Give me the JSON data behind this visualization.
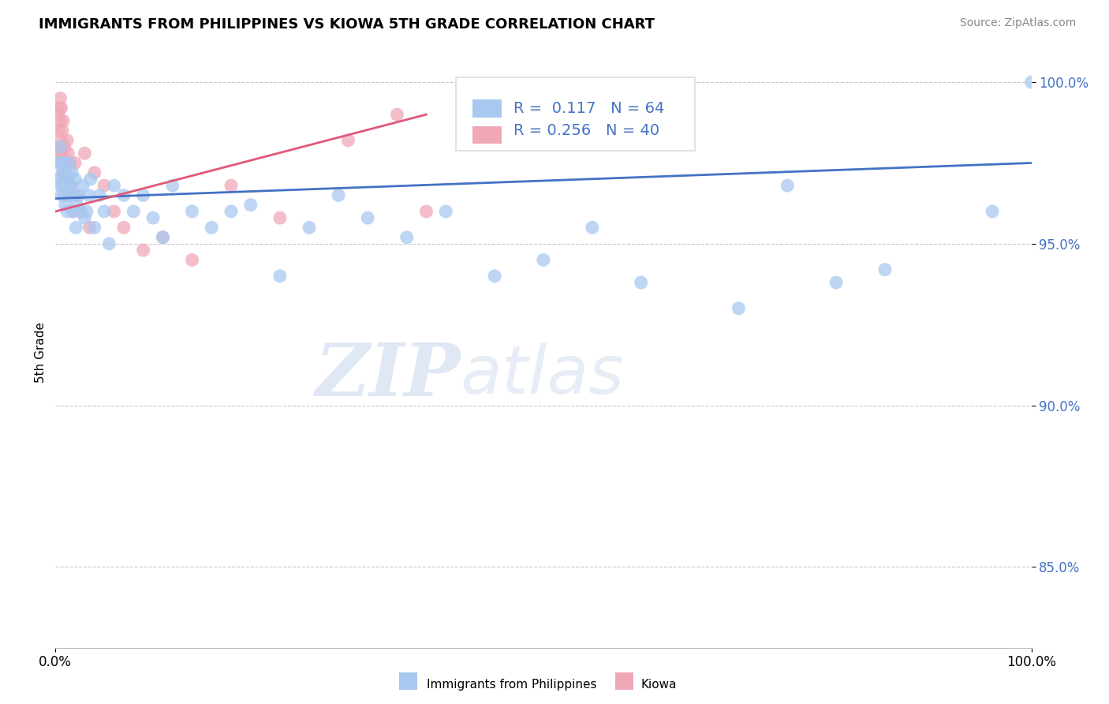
{
  "title": "IMMIGRANTS FROM PHILIPPINES VS KIOWA 5TH GRADE CORRELATION CHART",
  "source_text": "Source: ZipAtlas.com",
  "ylabel": "5th Grade",
  "xlim": [
    0.0,
    1.0
  ],
  "ylim": [
    0.825,
    1.008
  ],
  "y_tick_values": [
    0.85,
    0.9,
    0.95,
    1.0
  ],
  "legend_r1": "R =  0.117",
  "legend_n1": "N = 64",
  "legend_r2": "R = 0.256",
  "legend_n2": "N = 40",
  "blue_color": "#A8C8F0",
  "pink_color": "#F0A8B8",
  "trend_blue": "#4472C4",
  "trend_pink": "#E05878",
  "watermark_zip": "ZIP",
  "watermark_atlas": "atlas",
  "blue_trend_x0": 0.0,
  "blue_trend_y0": 0.964,
  "blue_trend_x1": 1.0,
  "blue_trend_y1": 0.975,
  "pink_trend_x0": 0.0,
  "pink_trend_y0": 0.96,
  "pink_trend_x1": 0.38,
  "pink_trend_y1": 0.99,
  "blue_scatter_x": [
    0.003,
    0.004,
    0.005,
    0.005,
    0.006,
    0.006,
    0.007,
    0.007,
    0.008,
    0.008,
    0.009,
    0.01,
    0.01,
    0.011,
    0.012,
    0.012,
    0.013,
    0.014,
    0.015,
    0.016,
    0.017,
    0.018,
    0.019,
    0.02,
    0.021,
    0.022,
    0.024,
    0.026,
    0.028,
    0.03,
    0.032,
    0.034,
    0.036,
    0.04,
    0.045,
    0.05,
    0.055,
    0.06,
    0.07,
    0.08,
    0.09,
    0.1,
    0.11,
    0.12,
    0.14,
    0.16,
    0.18,
    0.2,
    0.23,
    0.26,
    0.29,
    0.32,
    0.36,
    0.4,
    0.45,
    0.5,
    0.55,
    0.6,
    0.7,
    0.75,
    0.8,
    0.85,
    0.96,
    1.0
  ],
  "blue_scatter_y": [
    0.975,
    0.97,
    0.968,
    0.98,
    0.965,
    0.975,
    0.972,
    0.968,
    0.97,
    0.975,
    0.965,
    0.962,
    0.97,
    0.972,
    0.968,
    0.96,
    0.97,
    0.975,
    0.965,
    0.968,
    0.972,
    0.96,
    0.965,
    0.97,
    0.955,
    0.962,
    0.965,
    0.96,
    0.968,
    0.958,
    0.96,
    0.965,
    0.97,
    0.955,
    0.965,
    0.96,
    0.95,
    0.968,
    0.965,
    0.96,
    0.965,
    0.958,
    0.952,
    0.968,
    0.96,
    0.955,
    0.96,
    0.962,
    0.94,
    0.955,
    0.965,
    0.958,
    0.952,
    0.96,
    0.94,
    0.945,
    0.955,
    0.938,
    0.93,
    0.968,
    0.938,
    0.942,
    0.96,
    1.0
  ],
  "pink_scatter_x": [
    0.003,
    0.003,
    0.004,
    0.004,
    0.005,
    0.005,
    0.005,
    0.006,
    0.006,
    0.006,
    0.007,
    0.007,
    0.008,
    0.008,
    0.009,
    0.01,
    0.011,
    0.012,
    0.013,
    0.014,
    0.015,
    0.016,
    0.018,
    0.02,
    0.022,
    0.025,
    0.03,
    0.035,
    0.04,
    0.05,
    0.06,
    0.07,
    0.09,
    0.11,
    0.14,
    0.18,
    0.23,
    0.3,
    0.35,
    0.38
  ],
  "pink_scatter_y": [
    0.99,
    0.985,
    0.98,
    0.992,
    0.988,
    0.978,
    0.995,
    0.982,
    0.975,
    0.992,
    0.985,
    0.978,
    0.988,
    0.972,
    0.98,
    0.975,
    0.97,
    0.982,
    0.978,
    0.965,
    0.975,
    0.968,
    0.96,
    0.975,
    0.965,
    0.96,
    0.978,
    0.955,
    0.972,
    0.968,
    0.96,
    0.955,
    0.948,
    0.952,
    0.945,
    0.968,
    0.958,
    0.982,
    0.99,
    0.96
  ]
}
